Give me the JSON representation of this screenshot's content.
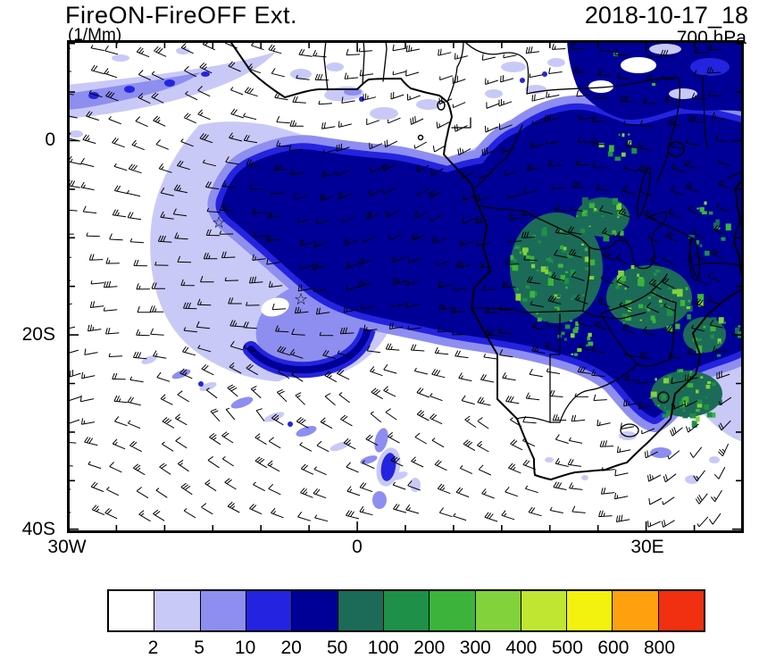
{
  "header": {
    "title": "FireON-FireOFF Ext.",
    "units": "(1/Mm)",
    "datetime": "2018-10-17_18",
    "level": "700 hPa"
  },
  "axes": {
    "y_ticks": [
      "0",
      "20S",
      "40S"
    ],
    "x_ticks": [
      "30W",
      "0",
      "30E"
    ]
  },
  "markers": {
    "star": "☆"
  },
  "colorbar": {
    "labels": [
      "2",
      "5",
      "10",
      "20",
      "50",
      "100",
      "200",
      "300",
      "400",
      "500",
      "600",
      "800"
    ],
    "colors": [
      "#ffffff",
      "#c9c9f8",
      "#8e8ef0",
      "#2424e0",
      "#000096",
      "#1b6b58",
      "#1f9048",
      "#3cb43c",
      "#82d23c",
      "#c0e632",
      "#f2f20e",
      "#ffa00f",
      "#f03010"
    ]
  },
  "chart_data": {
    "type": "heatmap",
    "subtype": "filled-contour geographic map with wind barb overlay",
    "title": "FireON-FireOFF Ext.",
    "units": "1/Mm",
    "pressure_level": "700 hPa",
    "valid_time": "2018-10-17_18",
    "x_axis": {
      "tick_labels": [
        "30W",
        "0",
        "30E"
      ],
      "domain_lon_deg": [
        -30,
        40
      ]
    },
    "y_axis": {
      "tick_labels": [
        "0",
        "20S",
        "40S"
      ],
      "domain_lat_deg": [
        -40.5,
        10.2
      ]
    },
    "contour_levels": [
      2,
      5,
      10,
      20,
      50,
      100,
      200,
      300,
      400,
      500,
      600,
      800
    ],
    "palette": [
      "#ffffff",
      "#c9c9f8",
      "#8e8ef0",
      "#2424e0",
      "#000096",
      "#1b6b58",
      "#1f9048",
      "#3cb43c",
      "#82d23c",
      "#c0e632",
      "#f2f20e",
      "#ffa00f",
      "#f03010"
    ],
    "legend_position": "bottom",
    "grid": false,
    "overlay": "700 hPa wind barbs drawn over whole domain",
    "basemap": "African coastline and country borders, 30W-40E / 10N-40S",
    "features": [
      {
        "region": "South Atlantic off Angola-Namibia and central/southern Africa interior",
        "value_bin": "20-50",
        "description": "large dark-blue smoke extinction plume extending from ~12W across the Gulf of Guinea into DRC/Angola/Zambia/Zimbabwe/Mozambique"
      },
      {
        "region": "Angola / Zambia / southern DRC interior",
        "value_bin": "100-400",
        "description": "embedded green extinction maxima over land, with 50-100 dark-teal transition areas"
      },
      {
        "region": "western plume edge 25W-5W, 0-20S",
        "value_bin": "2-20",
        "description": "lavender/periwinkle fringe with a cyclonic eddy/hook near 15W-5W, 12S-20S"
      },
      {
        "region": "northwest corner band along ~2N-8N",
        "value_bin": "2-20",
        "description": "thin diagonal filament from the west edge"
      },
      {
        "region": "scattered streaks 20S-35S over the South Atlantic",
        "value_bin": "2-20",
        "description": "broken diagonal cloud-like filaments"
      },
      {
        "region": "southeast coast near Beira/Mozambique channel",
        "value_bin": "20-300",
        "description": "plume tongue with green maxima hugging the coast"
      }
    ],
    "markers": [
      {
        "symbol": "star",
        "lon": -14.3,
        "lat": -8.3
      },
      {
        "symbol": "star",
        "lon": -5.8,
        "lat": -16.1
      }
    ]
  }
}
